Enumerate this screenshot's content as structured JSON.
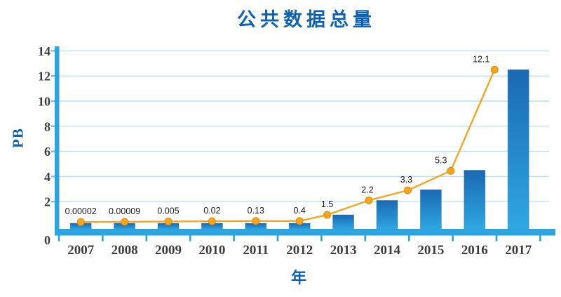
{
  "title": "公共数据总量",
  "colors": {
    "title_blue": "#0e62ae",
    "axis_blue": "#2ba4e0",
    "gridline": "#b9e2f6",
    "grid_nub": "#6ec5ec",
    "bar_gradient_top": "#1a69b3",
    "bar_gradient_bottom": "#2fa8e1",
    "bar_outline": "#15609f",
    "line_orange": "#f5a21c",
    "marker_fill": "#f7a41f",
    "marker_stroke": "#e08d05",
    "tick_text": "#3d3d3d",
    "value_text": "#1b1b1b"
  },
  "chart_data": {
    "type": "bar+line",
    "title": "公共数据总量",
    "xlabel": "年",
    "ylabel": "PB",
    "categories": [
      "2007",
      "2008",
      "2009",
      "2010",
      "2011",
      "2012",
      "2013",
      "2014",
      "2015",
      "2016",
      "2017"
    ],
    "values": [
      2e-05,
      9e-05,
      0.005,
      0.02,
      0.13,
      0.4,
      1.5,
      2.2,
      3.3,
      5.3,
      12.1
    ],
    "value_labels": [
      "0.00002",
      "0.00009",
      "0.005",
      "0.02",
      "0.13",
      "0.4",
      "1.5",
      "2.2",
      "3.3",
      "5.3",
      "12.1"
    ],
    "y_ticks": [
      0,
      2,
      4,
      6,
      8,
      10,
      12,
      14
    ],
    "ylim": [
      0,
      14
    ],
    "grid": true,
    "legend": false,
    "note_bars_not_to_scale": "small-value bars are drawn as visible stubs in the source graphic",
    "bar_display_pb": [
      0.28,
      0.28,
      0.28,
      0.28,
      0.28,
      0.28,
      0.95,
      2.1,
      2.95,
      4.5,
      12.5
    ],
    "line_display_pb": [
      0.38,
      0.4,
      0.42,
      0.44,
      0.46,
      0.46,
      0.95,
      2.1,
      2.9,
      4.45,
      12.5
    ]
  }
}
